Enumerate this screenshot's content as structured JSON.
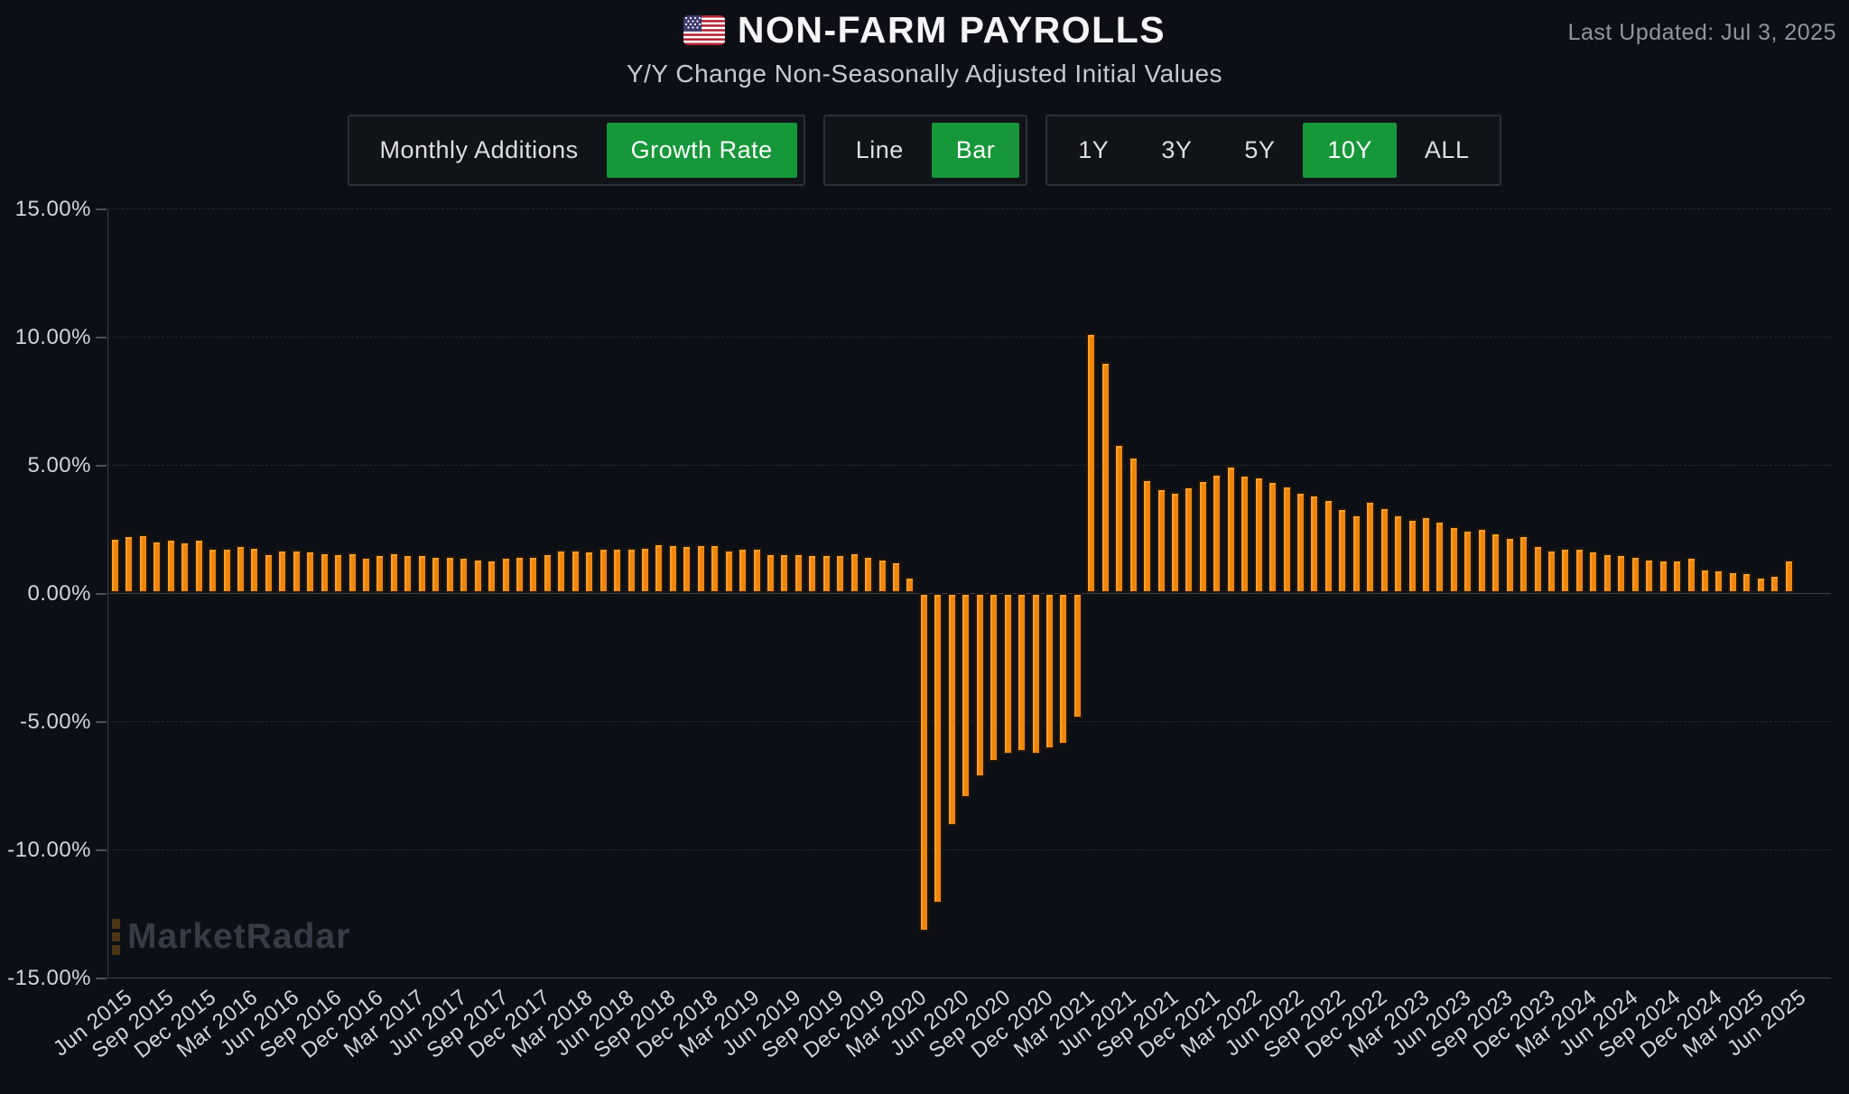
{
  "header": {
    "title": "NON-FARM PAYROLLS",
    "subtitle": "Y/Y Change Non-Seasonally Adjusted Initial Values",
    "last_updated": "Last Updated: Jul 3, 2025",
    "flag_icon": "us-flag-icon"
  },
  "controls": {
    "series_toggle": {
      "options": [
        {
          "label": "Monthly Additions",
          "active": false
        },
        {
          "label": "Growth Rate",
          "active": true
        }
      ]
    },
    "chart_type_toggle": {
      "options": [
        {
          "label": "Line",
          "active": false
        },
        {
          "label": "Bar",
          "active": true
        }
      ]
    },
    "range_toggle": {
      "options": [
        {
          "label": "1Y",
          "active": false
        },
        {
          "label": "3Y",
          "active": false
        },
        {
          "label": "5Y",
          "active": false
        },
        {
          "label": "10Y",
          "active": true
        },
        {
          "label": "ALL",
          "active": false
        }
      ]
    }
  },
  "watermark": "MarketRadar",
  "colors": {
    "background": "#0c1016",
    "bar_fill": "#ee860e",
    "bar_highlight": "#fb9f27",
    "bar_edge": "#221607",
    "active_green": "#169739",
    "grid": "#232831",
    "axis": "#3a414b",
    "axis_text": "#d2d6dc"
  },
  "chart_data": {
    "type": "bar",
    "title": "NON-FARM PAYROLLS",
    "subtitle": "Y/Y Change Non-Seasonally Adjusted Initial Values",
    "ylabel": "",
    "xlabel": "",
    "ylim": [
      -15,
      15
    ],
    "y_ticks": [
      {
        "value": 15,
        "label": "15.00%"
      },
      {
        "value": 10,
        "label": "10.00%"
      },
      {
        "value": 5,
        "label": "5.00%"
      },
      {
        "value": 0,
        "label": "0.00%"
      },
      {
        "value": -5,
        "label": "-5.00%"
      },
      {
        "value": -10,
        "label": "-10.00%"
      },
      {
        "value": -15,
        "label": "-15.00%"
      }
    ],
    "x_tick_every": 3,
    "legend": "none",
    "grid": "horizontal",
    "categories": [
      "Jun 2015",
      "Jul 2015",
      "Aug 2015",
      "Sep 2015",
      "Oct 2015",
      "Nov 2015",
      "Dec 2015",
      "Jan 2016",
      "Feb 2016",
      "Mar 2016",
      "Apr 2016",
      "May 2016",
      "Jun 2016",
      "Jul 2016",
      "Aug 2016",
      "Sep 2016",
      "Oct 2016",
      "Nov 2016",
      "Dec 2016",
      "Jan 2017",
      "Feb 2017",
      "Mar 2017",
      "Apr 2017",
      "May 2017",
      "Jun 2017",
      "Jul 2017",
      "Aug 2017",
      "Sep 2017",
      "Oct 2017",
      "Nov 2017",
      "Dec 2017",
      "Jan 2018",
      "Feb 2018",
      "Mar 2018",
      "Apr 2018",
      "May 2018",
      "Jun 2018",
      "Jul 2018",
      "Aug 2018",
      "Sep 2018",
      "Oct 2018",
      "Nov 2018",
      "Dec 2018",
      "Jan 2019",
      "Feb 2019",
      "Mar 2019",
      "Apr 2019",
      "May 2019",
      "Jun 2019",
      "Jul 2019",
      "Aug 2019",
      "Sep 2019",
      "Oct 2019",
      "Nov 2019",
      "Dec 2019",
      "Jan 2020",
      "Feb 2020",
      "Mar 2020",
      "Apr 2020",
      "May 2020",
      "Jun 2020",
      "Jul 2020",
      "Aug 2020",
      "Sep 2020",
      "Oct 2020",
      "Nov 2020",
      "Dec 2020",
      "Jan 2021",
      "Feb 2021",
      "Mar 2021",
      "Apr 2021",
      "May 2021",
      "Jun 2021",
      "Jul 2021",
      "Aug 2021",
      "Sep 2021",
      "Oct 2021",
      "Nov 2021",
      "Dec 2021",
      "Jan 2022",
      "Feb 2022",
      "Mar 2022",
      "Apr 2022",
      "May 2022",
      "Jun 2022",
      "Jul 2022",
      "Aug 2022",
      "Sep 2022",
      "Oct 2022",
      "Nov 2022",
      "Dec 2022",
      "Jan 2023",
      "Feb 2023",
      "Mar 2023",
      "Apr 2023",
      "May 2023",
      "Jun 2023",
      "Jul 2023",
      "Aug 2023",
      "Sep 2023",
      "Oct 2023",
      "Nov 2023",
      "Dec 2023",
      "Jan 2024",
      "Feb 2024",
      "Mar 2024",
      "Apr 2024",
      "May 2024",
      "Jun 2024",
      "Jul 2024",
      "Aug 2024",
      "Sep 2024",
      "Oct 2024",
      "Nov 2024",
      "Dec 2024",
      "Jan 2025",
      "Feb 2025",
      "Mar 2025",
      "Apr 2025",
      "May 2025",
      "Jun 2025"
    ],
    "values": [
      2.15,
      2.25,
      2.3,
      2.05,
      2.1,
      2.0,
      2.1,
      1.75,
      1.75,
      1.85,
      1.8,
      1.55,
      1.7,
      1.7,
      1.65,
      1.6,
      1.55,
      1.6,
      1.4,
      1.5,
      1.6,
      1.5,
      1.5,
      1.45,
      1.45,
      1.4,
      1.35,
      1.3,
      1.4,
      1.45,
      1.45,
      1.55,
      1.7,
      1.7,
      1.65,
      1.75,
      1.75,
      1.75,
      1.8,
      1.95,
      1.9,
      1.85,
      1.9,
      1.9,
      1.7,
      1.75,
      1.75,
      1.55,
      1.55,
      1.55,
      1.5,
      1.5,
      1.5,
      1.6,
      1.45,
      1.35,
      1.25,
      0.65,
      -13.2,
      -12.1,
      -9.1,
      -8.0,
      -7.2,
      -6.6,
      -6.3,
      -6.2,
      -6.3,
      -6.1,
      -5.9,
      -4.9,
      10.15,
      9.0,
      5.8,
      5.3,
      4.45,
      4.1,
      3.95,
      4.15,
      4.4,
      4.65,
      4.95,
      4.6,
      4.55,
      4.35,
      4.2,
      3.95,
      3.85,
      3.65,
      3.3,
      3.05,
      3.6,
      3.35,
      3.05,
      2.9,
      3.0,
      2.8,
      2.6,
      2.45,
      2.55,
      2.35,
      2.2,
      2.25,
      1.85,
      1.7,
      1.75,
      1.75,
      1.65,
      1.55,
      1.5,
      1.45,
      1.35,
      1.3,
      1.3,
      1.4,
      0.95,
      0.9,
      0.85,
      0.8,
      0.65,
      0.7,
      1.3
    ]
  }
}
